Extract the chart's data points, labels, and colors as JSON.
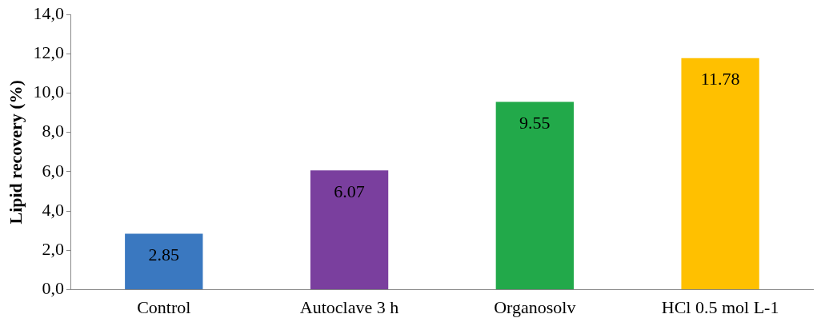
{
  "chart_data": {
    "type": "bar",
    "ylabel": "Lipid recovery (%)",
    "categories": [
      "Control",
      "Autoclave 3 h",
      "Organosolv",
      "HCl 0.5 mol L-1"
    ],
    "values": [
      2.85,
      6.07,
      9.55,
      11.78
    ],
    "colors": [
      "#3a78c0",
      "#7a3f9e",
      "#22a94a",
      "#ffc000"
    ],
    "ylim": [
      0,
      14
    ],
    "yticks": [
      {
        "value": 0,
        "label": "0,0"
      },
      {
        "value": 2,
        "label": "2,0"
      },
      {
        "value": 4,
        "label": "4,0"
      },
      {
        "value": 6,
        "label": "6,0"
      },
      {
        "value": 8,
        "label": "8,0"
      },
      {
        "value": 10,
        "label": "10,0"
      },
      {
        "value": 12,
        "label": "12,0"
      },
      {
        "value": 14,
        "label": "14,0"
      }
    ],
    "grid": false,
    "legend": false,
    "data_labels": true
  }
}
